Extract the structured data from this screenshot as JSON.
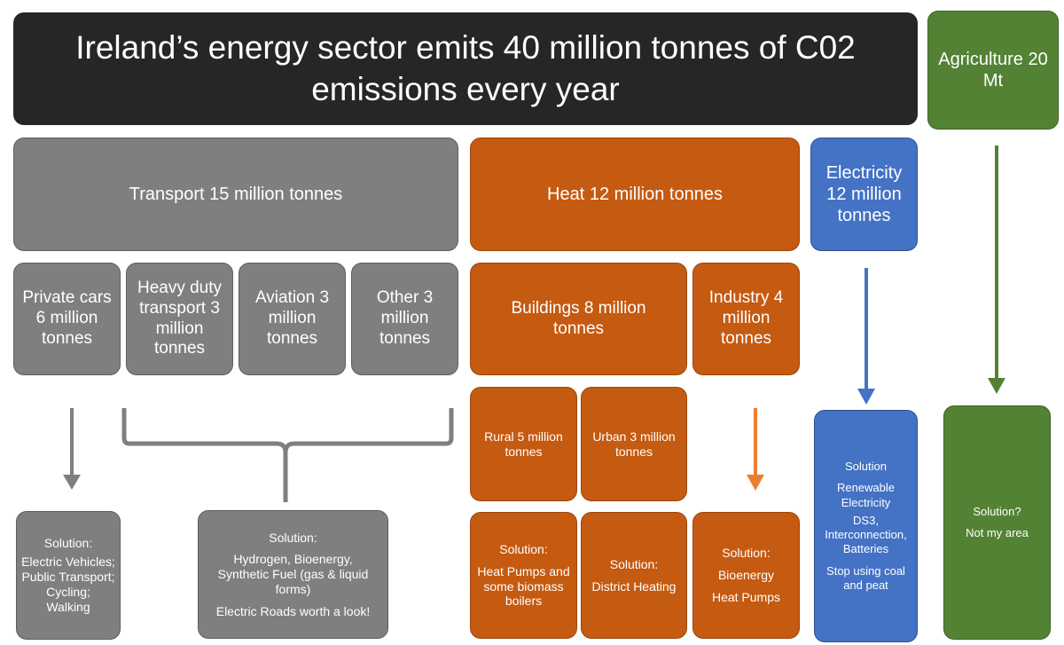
{
  "title": "Ireland’s energy sector emits 40 million tonnes of C02 emissions every year",
  "agriculture": {
    "label": "Agriculture 20 Mt",
    "solution": [
      "Solution?",
      "Not my area"
    ]
  },
  "transport": {
    "label": "Transport 15 million tonnes",
    "subs": [
      "Private cars 6 million tonnes",
      "Heavy duty transport 3 million tonnes",
      "Aviation 3 million tonnes",
      "Other 3 million tonnes"
    ],
    "solution_cars": [
      "Solution:",
      "Electric Vehicles;",
      "Public Transport;",
      "Cycling;",
      "Walking"
    ],
    "solution_other": [
      "Solution:",
      "Hydrogen, Bioenergy, Synthetic Fuel (gas & liquid forms)",
      "Electric Roads worth a look!"
    ]
  },
  "heat": {
    "label": "Heat 12 million tonnes",
    "buildings": "Buildings 8 million tonnes",
    "industry": "Industry 4 million tonnes",
    "rural": "Rural 5 million tonnes",
    "urban": "Urban 3 million tonnes",
    "solution_rural": [
      "Solution:",
      "Heat Pumps and some biomass boilers"
    ],
    "solution_urban": [
      "Solution:",
      "District Heating"
    ],
    "solution_industry": [
      "Solution:",
      "Bioenergy",
      "Heat Pumps"
    ]
  },
  "electricity": {
    "label": "Electricity 12 million tonnes",
    "solution": [
      "Solution",
      "Renewable Electricity",
      "DS3, Interconnection, Batteries",
      "Stop using coal and peat"
    ]
  },
  "colors": {
    "black": "#262626",
    "grey": "#7f7f7f",
    "orange": "#c55a11",
    "blue": "#4472c4",
    "green": "#548235"
  }
}
